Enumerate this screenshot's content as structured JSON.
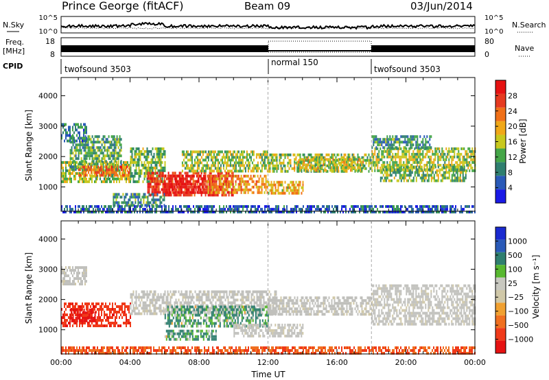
{
  "header": {
    "station": "Prince George (fitACF)",
    "beam": "Beam 09",
    "date": "03/Jun/2014"
  },
  "panels": {
    "nsky_label": "N.Sky",
    "nsky_ticks": [
      "10^5",
      "10^0"
    ],
    "nsearch_label": "N.Search",
    "nsearch_ticks": [
      "10^5",
      "10^0"
    ],
    "freq_label_1": "Freq.",
    "freq_label_2": "[MHz]",
    "freq_ticks": [
      "18",
      "8"
    ],
    "nave_label": "Nave",
    "nave_ticks": [
      "80",
      "0"
    ],
    "cpid_label": "CPID",
    "cpid_segments": [
      {
        "start_h": 0,
        "label": "twofsound 3503"
      },
      {
        "start_h": 12,
        "label": "normal 150"
      },
      {
        "start_h": 18,
        "label": "twofsound 3503"
      }
    ]
  },
  "colors": {
    "power": [
      "#1a1ae6",
      "#2a5ab8",
      "#2f7f6f",
      "#45a648",
      "#c8c81e",
      "#f0a818",
      "#f07018",
      "#e63a20",
      "#e61212"
    ],
    "velocity": [
      "#e61212",
      "#f03a1a",
      "#f07020",
      "#f0a030",
      "#d0c8a8",
      "#c8c8c0",
      "#58b830",
      "#2f7f6f",
      "#2a5ab8",
      "#1a2ad0"
    ],
    "ground_scatter": "#c0c0bc"
  },
  "chart_data": [
    {
      "type": "heatmap",
      "name": "Power",
      "xlabel": "Time UT",
      "ylabel": "Slant Range [km]",
      "x_range_hours": [
        0,
        24
      ],
      "ylim": [
        200,
        4600
      ],
      "y_ticks": [
        1000,
        2000,
        3000,
        4000
      ],
      "x_tick_labels": [
        "00:00",
        "04:00",
        "08:00",
        "12:00",
        "16:00",
        "20:00",
        "00:00"
      ],
      "colorbar": {
        "label": "Power [dB]",
        "ticks": [
          "4",
          "8",
          "12",
          "16",
          "20",
          "24",
          "28"
        ],
        "range": [
          0,
          30
        ]
      },
      "vertical_markers_h": [
        12,
        18
      ],
      "bands": [
        {
          "t0": 0.0,
          "t1": 4.0,
          "r0": 1200,
          "r1": 1850,
          "v": 14
        },
        {
          "t0": 0.5,
          "t1": 3.5,
          "r0": 1550,
          "r1": 2700,
          "v": 11
        },
        {
          "t0": 0.0,
          "t1": 1.5,
          "r0": 2500,
          "r1": 3100,
          "v": 8
        },
        {
          "t0": 1.0,
          "t1": 4.0,
          "r0": 1350,
          "r1": 1700,
          "v": 22
        },
        {
          "t0": 4.0,
          "t1": 6.0,
          "r0": 1200,
          "r1": 2300,
          "v": 12
        },
        {
          "t0": 5.0,
          "t1": 10.0,
          "r0": 700,
          "r1": 1500,
          "v": 26
        },
        {
          "t0": 6.0,
          "t1": 9.0,
          "r0": 850,
          "r1": 1400,
          "v": 29
        },
        {
          "t0": 8.5,
          "t1": 12.0,
          "r0": 800,
          "r1": 1400,
          "v": 20
        },
        {
          "t0": 7.0,
          "t1": 12.0,
          "r0": 1500,
          "r1": 2200,
          "v": 14
        },
        {
          "t0": 3.0,
          "t1": 6.0,
          "r0": 350,
          "r1": 800,
          "v": 9
        },
        {
          "t0": 12.0,
          "t1": 14.0,
          "r0": 800,
          "r1": 1200,
          "v": 18
        },
        {
          "t0": 12.0,
          "t1": 18.0,
          "r0": 1500,
          "r1": 2100,
          "v": 13
        },
        {
          "t0": 13.5,
          "t1": 17.5,
          "r0": 1550,
          "r1": 1950,
          "v": 16
        },
        {
          "t0": 18.0,
          "t1": 24.0,
          "r0": 1500,
          "r1": 2300,
          "v": 14
        },
        {
          "t0": 18.5,
          "t1": 23.5,
          "r0": 1200,
          "r1": 1700,
          "v": 12
        },
        {
          "t0": 18.0,
          "t1": 21.5,
          "r0": 2300,
          "r1": 2700,
          "v": 9
        },
        {
          "t0": 0.0,
          "t1": 24.0,
          "r0": 200,
          "r1": 400,
          "v": 6
        }
      ]
    },
    {
      "type": "heatmap",
      "name": "Velocity",
      "xlabel": "Time UT",
      "ylabel": "Slant Range [km]",
      "x_range_hours": [
        0,
        24
      ],
      "ylim": [
        200,
        4600
      ],
      "y_ticks": [
        1000,
        2000,
        3000,
        4000
      ],
      "x_tick_labels": [
        "00:00",
        "04:00",
        "08:00",
        "12:00",
        "16:00",
        "20:00",
        "00:00"
      ],
      "colorbar": {
        "label": "Velocity [m s⁻¹]",
        "ticks": [
          "1000",
          "500",
          "100",
          "25",
          "−25",
          "−100",
          "−500",
          "−1000"
        ]
      },
      "vertical_markers_h": [
        12,
        18
      ],
      "bands": [
        {
          "t0": 0.0,
          "t1": 4.0,
          "r0": 1100,
          "r1": 1900,
          "v": -600
        },
        {
          "t0": 0.5,
          "t1": 2.0,
          "r0": 1250,
          "r1": 1700,
          "v": -1000
        },
        {
          "t0": 0.0,
          "t1": 1.5,
          "r0": 2500,
          "r1": 3100,
          "v": 0
        },
        {
          "t0": 4.0,
          "t1": 12.5,
          "r0": 1500,
          "r1": 2300,
          "v": 0
        },
        {
          "t0": 6.0,
          "t1": 12.0,
          "r0": 1100,
          "r1": 1800,
          "v": 120
        },
        {
          "t0": 6.0,
          "t1": 9.0,
          "r0": 700,
          "r1": 1000,
          "v": 120
        },
        {
          "t0": 12.0,
          "t1": 18.0,
          "r0": 1500,
          "r1": 2100,
          "v": 0
        },
        {
          "t0": 10.0,
          "t1": 14.0,
          "r0": 800,
          "r1": 1200,
          "v": 0
        },
        {
          "t0": 18.0,
          "t1": 24.0,
          "r0": 1200,
          "r1": 2500,
          "v": 0
        },
        {
          "t0": 0.0,
          "t1": 24.0,
          "r0": 200,
          "r1": 450,
          "v": -300
        }
      ]
    }
  ]
}
